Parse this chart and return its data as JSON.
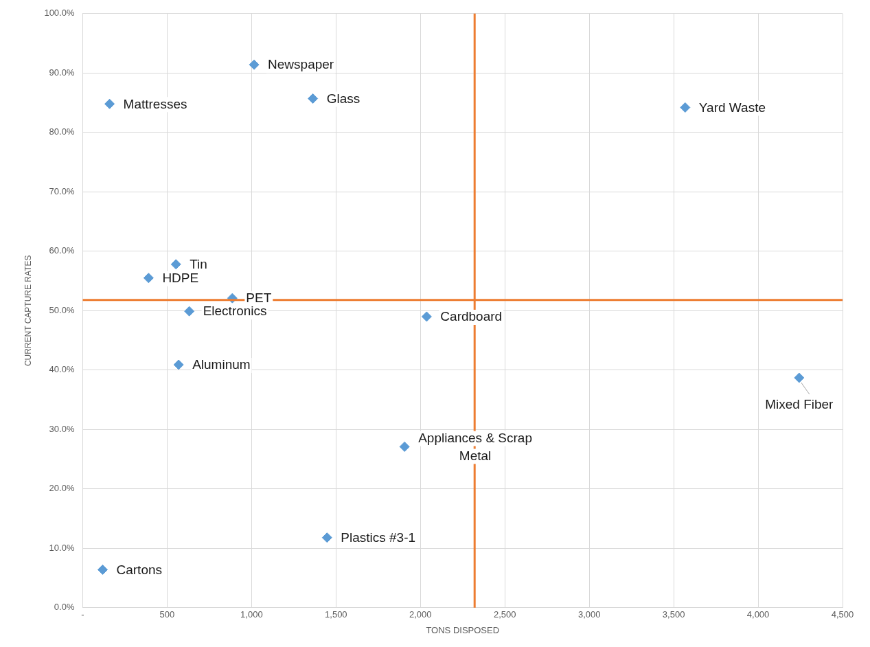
{
  "chart_data": {
    "type": "scatter",
    "xlabel": "TONS DISPOSED",
    "ylabel": "CURRENT CAPTURE RATES",
    "x": [
      1015,
      159,
      1363,
      552,
      390,
      886,
      631,
      568,
      2037,
      1906,
      1447,
      118,
      3568,
      4243
    ],
    "series": [
      {
        "color": "#5b9bd5",
        "values": [
          91.4,
          84.8,
          85.7,
          57.8,
          55.5,
          52.1,
          49.9,
          40.9,
          49.0,
          27.1,
          11.8,
          6.4,
          84.2,
          38.7
        ]
      }
    ],
    "marker": "diamond",
    "grid": true,
    "legend": false,
    "xlim": [
      0,
      4500
    ],
    "xticks": [
      {
        "value": 0,
        "label": "-"
      },
      {
        "value": 500,
        "label": "500"
      },
      {
        "value": 1000,
        "label": "1,000"
      },
      {
        "value": 1500,
        "label": "1,500"
      },
      {
        "value": 2000,
        "label": "2,000"
      },
      {
        "value": 2500,
        "label": "2,500"
      },
      {
        "value": 3000,
        "label": "3,000"
      },
      {
        "value": 3500,
        "label": "3,500"
      },
      {
        "value": 4000,
        "label": "4,000"
      },
      {
        "value": 4500,
        "label": "4,500"
      }
    ],
    "ylim": [
      0,
      100
    ],
    "yticks": [
      {
        "value": 0,
        "label": "0.0%"
      },
      {
        "value": 10,
        "label": "10.0%"
      },
      {
        "value": 20,
        "label": "20.0%"
      },
      {
        "value": 30,
        "label": "30.0%"
      },
      {
        "value": 40,
        "label": "40.0%"
      },
      {
        "value": 50,
        "label": "50.0%"
      },
      {
        "value": 60,
        "label": "60.0%"
      },
      {
        "value": 70,
        "label": "70.0%"
      },
      {
        "value": 80,
        "label": "80.0%"
      },
      {
        "value": 90,
        "label": "90.0%"
      },
      {
        "value": 100,
        "label": "100.0%"
      }
    ],
    "ref_lines": [
      {
        "axis": "x",
        "value": 2321,
        "color": "#ed7d31"
      },
      {
        "axis": "y",
        "value": 51.8,
        "color": "#ed7d31"
      }
    ],
    "annotations": [
      {
        "text": "Newspaper",
        "x": 1015,
        "y": 91.4
      },
      {
        "text": "Mattresses",
        "x": 159,
        "y": 84.8
      },
      {
        "text": "Glass",
        "x": 1363,
        "y": 85.7
      },
      {
        "text": "Tin",
        "x": 552,
        "y": 57.8
      },
      {
        "text": "HDPE",
        "x": 390,
        "y": 55.5
      },
      {
        "text": "PET",
        "x": 886,
        "y": 52.1
      },
      {
        "text": "Electronics",
        "x": 631,
        "y": 49.9
      },
      {
        "text": "Aluminum",
        "x": 568,
        "y": 40.9
      },
      {
        "text": "Cardboard",
        "x": 2037,
        "y": 49.0
      },
      {
        "text": "Appliances & Scrap Metal",
        "x": 1906,
        "y": 27.1
      },
      {
        "text": "Plastics #3-1",
        "x": 1447,
        "y": 11.8
      },
      {
        "text": "Cartons",
        "x": 118,
        "y": 6.4
      },
      {
        "text": "Yard Waste",
        "x": 3568,
        "y": 84.2
      },
      {
        "text": "Mixed Fiber",
        "x": 4243,
        "y": 38.7
      }
    ]
  }
}
